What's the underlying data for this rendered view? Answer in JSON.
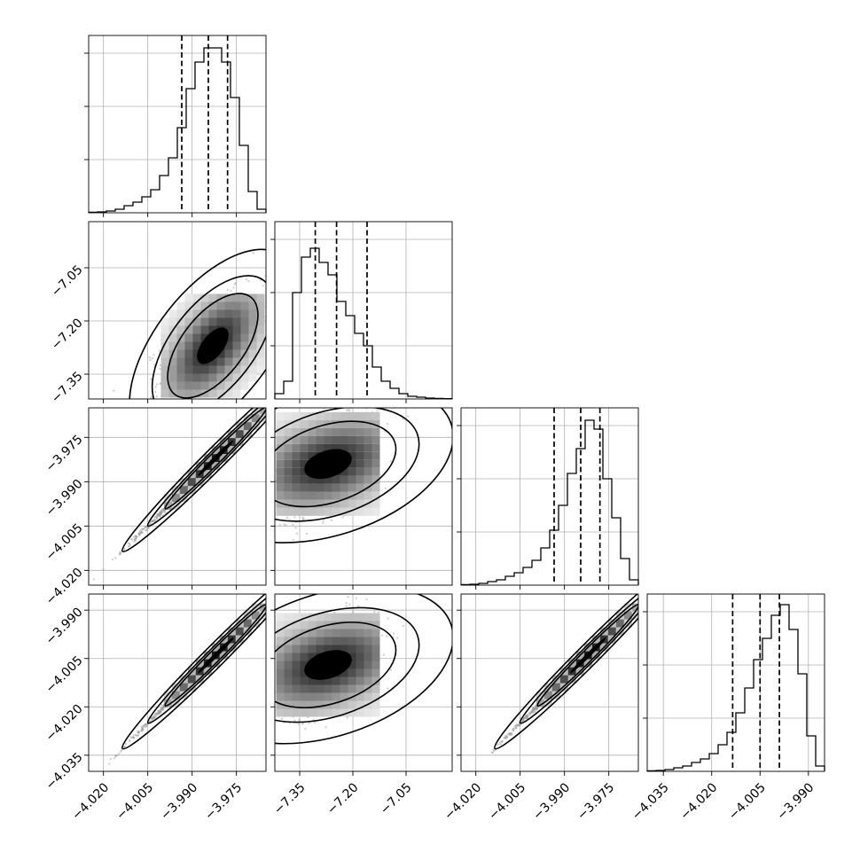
{
  "chart_data": {
    "type": "corner",
    "parameters": [
      {
        "index": 0,
        "range": [
          -4.025,
          -3.965
        ],
        "ticks": [
          -4.02,
          -4.005,
          -3.99,
          -3.975
        ],
        "tick_labels": [
          "−4.020",
          "−4.005",
          "−3.990",
          "−3.975"
        ],
        "quantiles": [
          -3.9935,
          -3.9845,
          -3.978
        ],
        "center": -3.9845,
        "hist": [
          0.3,
          0.5,
          1,
          2,
          4,
          6,
          9,
          13,
          21,
          31,
          48,
          70,
          85,
          93,
          93,
          85,
          65,
          38,
          12,
          2
        ]
      },
      {
        "index": 1,
        "range": [
          -7.42,
          -6.92
        ],
        "ticks": [
          -7.35,
          -7.2,
          -7.05
        ],
        "tick_labels": [
          "−7.35",
          "−7.20",
          "−7.05"
        ],
        "quantiles": [
          -7.306,
          -7.246,
          -7.16
        ],
        "center": -7.246,
        "hist": [
          3,
          10,
          60,
          80,
          85,
          77,
          70,
          55,
          47,
          37,
          30,
          18,
          10,
          6,
          3,
          1.5,
          1,
          0.5,
          0.3,
          0.2
        ]
      },
      {
        "index": 2,
        "range": [
          -4.025,
          -3.965
        ],
        "ticks": [
          -4.02,
          -4.005,
          -3.99,
          -3.975
        ],
        "tick_labels": [
          "−4.020",
          "−4.005",
          "−3.990",
          "−3.975"
        ],
        "quantiles": [
          -3.9935,
          -3.9845,
          -3.978
        ],
        "center": -3.9845,
        "hist": [
          0.3,
          0.5,
          1,
          2,
          3,
          5,
          7,
          10,
          14,
          21,
          31,
          45,
          63,
          77,
          93,
          88,
          60,
          38,
          15,
          3
        ]
      },
      {
        "index": 3,
        "range": [
          -4.04,
          -3.985
        ],
        "ticks": [
          -4.035,
          -4.02,
          -4.005,
          -3.99
        ],
        "tick_labels": [
          "−4.035",
          "−4.020",
          "−4.005",
          "−3.990"
        ],
        "quantiles": [
          -4.0135,
          -4.005,
          -3.999
        ],
        "center": -4.005,
        "hist": [
          0.3,
          0.5,
          1,
          2,
          3,
          5,
          7,
          10,
          15,
          22,
          33,
          47,
          63,
          75,
          88,
          94,
          80,
          55,
          20,
          3
        ]
      }
    ],
    "pairs": [
      {
        "x": 0,
        "y": 1,
        "center": [
          -3.983,
          -7.27
        ],
        "slope": 9.0,
        "ax_main": 0.0095,
        "ax_minor": 0.052,
        "rho": 0.55,
        "n_points": 900,
        "contour_angle_deg": -52,
        "contour_ar": 0.5,
        "contour_levels": [
          1,
          1.8,
          3.4
        ],
        "contour_base": 0.0095
      },
      {
        "x": 0,
        "y": 2,
        "center": [
          -3.982,
          -3.982
        ],
        "slope": 1.0,
        "ax_main": 0.0105,
        "ax_minor": 0.0009,
        "rho": 0.99,
        "n_points": 900,
        "contour_angle_deg": -45,
        "contour_ar": 0.08,
        "contour_levels": [
          1,
          1.8,
          3.4
        ],
        "contour_base": 0.011
      },
      {
        "x": 1,
        "y": 2,
        "center": [
          -7.27,
          -3.984
        ],
        "slope": 0.0,
        "ax_main": 0.085,
        "ax_minor": 0.009,
        "rho": 0.5,
        "n_points": 900,
        "contour_angle_deg": -18,
        "contour_ar": 0.55,
        "contour_levels": [
          1,
          1.8,
          3.4
        ],
        "contour_base": 0.09
      },
      {
        "x": 0,
        "y": 3,
        "center": [
          -3.982,
          -4.004
        ],
        "slope": 1.0,
        "ax_main": 0.0105,
        "ax_minor": 0.0009,
        "rho": 0.99,
        "n_points": 900,
        "contour_angle_deg": -45,
        "contour_ar": 0.08,
        "contour_levels": [
          1,
          1.8,
          3.4
        ],
        "contour_base": 0.011
      },
      {
        "x": 1,
        "y": 3,
        "center": [
          -7.27,
          -4.007
        ],
        "slope": 0.0,
        "ax_main": 0.085,
        "ax_minor": 0.009,
        "rho": 0.5,
        "n_points": 900,
        "contour_angle_deg": -18,
        "contour_ar": 0.55,
        "contour_levels": [
          1,
          1.8,
          3.4
        ],
        "contour_base": 0.09
      },
      {
        "x": 2,
        "y": 3,
        "center": [
          -3.982,
          -4.004
        ],
        "slope": 1.0,
        "ax_main": 0.0105,
        "ax_minor": 0.0009,
        "rho": 0.99,
        "n_points": 900,
        "contour_angle_deg": -45,
        "contour_ar": 0.08,
        "contour_levels": [
          1,
          1.8,
          3.4
        ],
        "contour_base": 0.011
      }
    ],
    "grid": true,
    "colors": {
      "line": "#000000",
      "grid": "#b0b0b0",
      "points": "#9a9a9a"
    }
  }
}
